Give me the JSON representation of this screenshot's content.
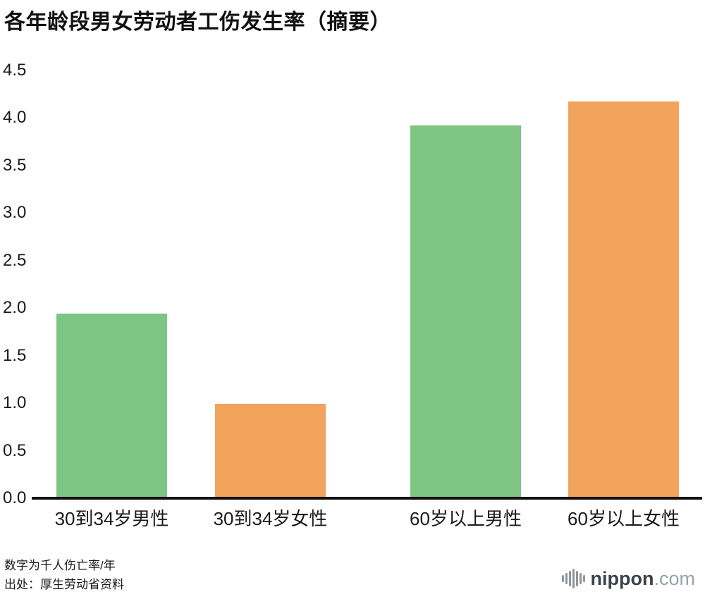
{
  "title": "各年龄段男女劳动者工伤发生率（摘要）",
  "chart_data": {
    "type": "bar",
    "title": "各年龄段男女劳动者工伤发生率（摘要）",
    "categories": [
      "30到34岁男性",
      "30到34岁女性",
      "60岁以上男性",
      "60岁以上女性"
    ],
    "values": [
      1.93,
      0.98,
      3.91,
      4.16
    ],
    "bar_colors": [
      "#7cc583",
      "#f2a35c",
      "#7cc583",
      "#f2a35c"
    ],
    "xlabel": "",
    "ylabel": "",
    "ylim": [
      0,
      4.5
    ],
    "yticks": [
      0.0,
      0.5,
      1.0,
      1.5,
      2.0,
      2.5,
      3.0,
      3.5,
      4.0,
      4.5
    ],
    "grid": false,
    "legend": "none"
  },
  "colors": {
    "male_bar": "#7cc583",
    "female_bar": "#f2a35c",
    "axis": "#111111"
  },
  "notes": {
    "line1": "数字为千人伤亡率/年",
    "line2": "出处：厚生劳动省资料"
  },
  "logo": {
    "icon": "waveform-icon",
    "name": "nippon",
    "tld": ".com"
  }
}
